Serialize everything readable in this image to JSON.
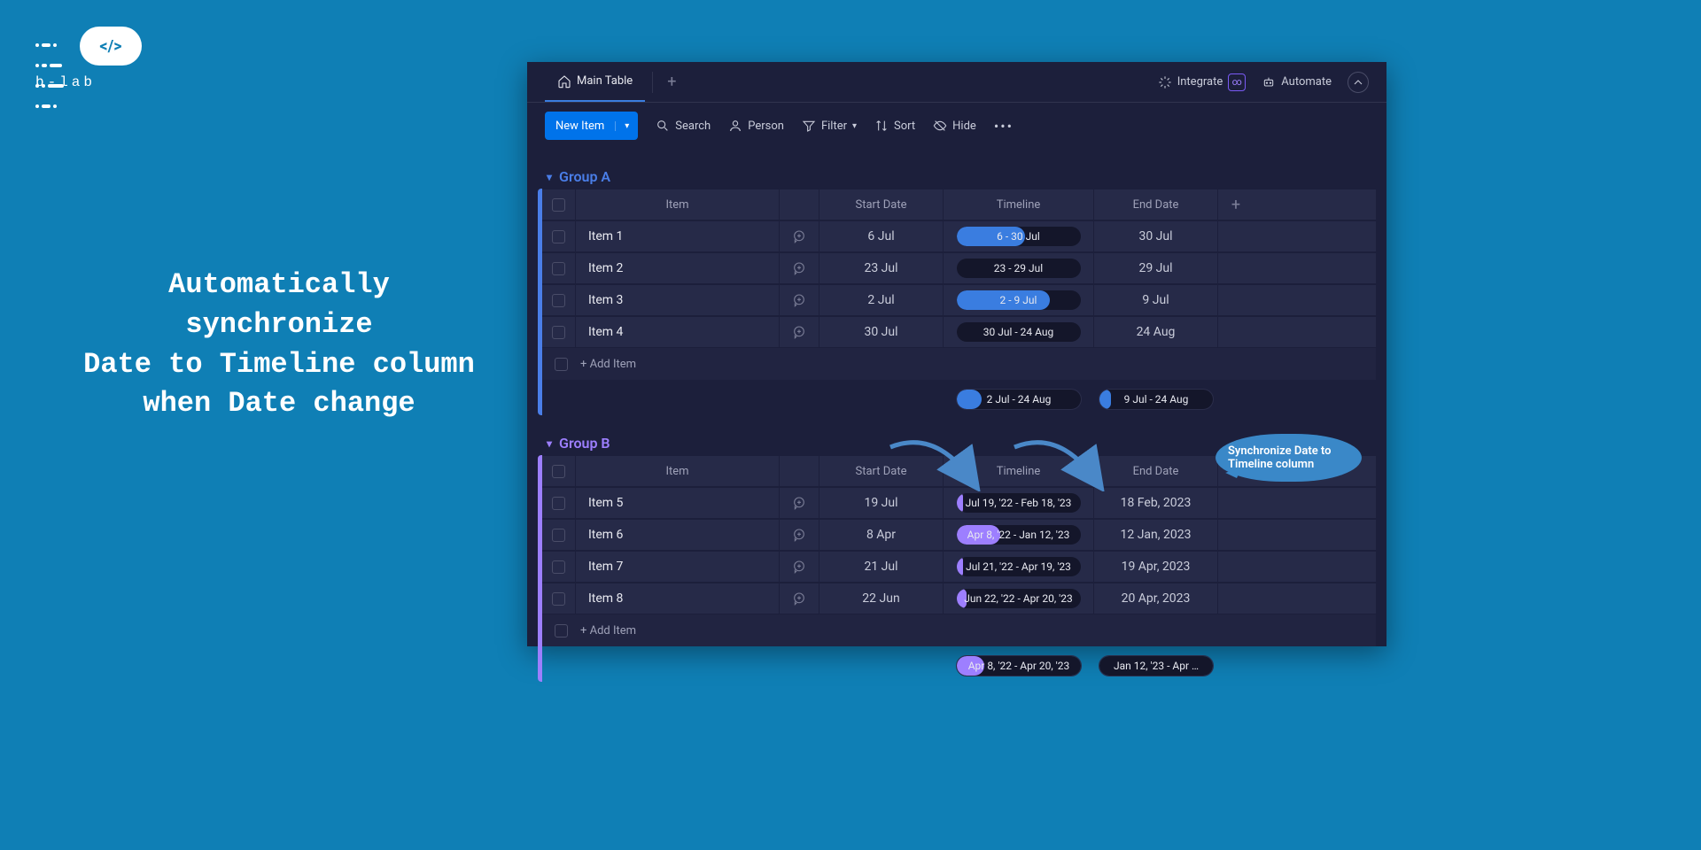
{
  "brand": {
    "name": "b-lab",
    "glyph": "</>"
  },
  "headline": "Automatically synchronize\nDate to Timeline column when Date change",
  "colors": {
    "page_bg": "#0f7fb5",
    "app_bg": "#1c1f3b",
    "row_bg": "#262a48",
    "primary_blue": "#0073ea",
    "group_a": "#4a7ee8",
    "group_b": "#9d7fff",
    "timeline_pill_bg": "#14162a",
    "callout_bg": "#3a88c8"
  },
  "topbar": {
    "tab_label": "Main Table",
    "integrate": "Integrate",
    "automate": "Automate"
  },
  "toolbar": {
    "new_item": "New Item",
    "search": "Search",
    "person": "Person",
    "filter": "Filter",
    "sort": "Sort",
    "hide": "Hide"
  },
  "columns": {
    "item": "Item",
    "start": "Start Date",
    "timeline": "Timeline",
    "end": "End Date"
  },
  "add_item": "+ Add Item",
  "callout": "Synchronize Date to Timeline column",
  "groups": [
    {
      "name": "Group A",
      "class": "group-a",
      "rows": [
        {
          "item": "Item 1",
          "start": "6 Jul",
          "timeline": "6 - 30 Jul",
          "end": "30 Jul",
          "fill_pct": 55,
          "fill_color": "#3a7de0"
        },
        {
          "item": "Item 2",
          "start": "23 Jul",
          "timeline": "23 - 29 Jul",
          "end": "29 Jul",
          "fill_pct": 0,
          "fill_color": "#3a7de0"
        },
        {
          "item": "Item 3",
          "start": "2 Jul",
          "timeline": "2 - 9 Jul",
          "end": "9 Jul",
          "fill_pct": 75,
          "fill_color": "#3a7de0"
        },
        {
          "item": "Item 4",
          "start": "30 Jul",
          "timeline": "30 Jul - 24 Aug",
          "end": "24 Aug",
          "fill_pct": 0,
          "fill_color": "#3a7de0"
        }
      ],
      "summary": {
        "timeline": "2 Jul - 24 Aug",
        "timeline_fill_pct": 20,
        "timeline_fill_color": "#3a7de0",
        "end": "9 Jul - 24 Aug",
        "end_fill_pct": 10,
        "end_fill_color": "#3a7de0"
      }
    },
    {
      "name": "Group B",
      "class": "group-b",
      "rows": [
        {
          "item": "Item 5",
          "start": "19 Jul",
          "timeline": "Jul 19, '22 - Feb 18, '23",
          "end": "18 Feb, 2023",
          "fill_pct": 5,
          "fill_color": "#9d7fff"
        },
        {
          "item": "Item 6",
          "start": "8 Apr",
          "timeline": "Apr 8, '22 - Jan 12, '23",
          "end": "12 Jan, 2023",
          "fill_pct": 35,
          "fill_color": "#9d7fff"
        },
        {
          "item": "Item 7",
          "start": "21 Jul",
          "timeline": "Jul 21, '22 - Apr 19, '23",
          "end": "19 Apr, 2023",
          "fill_pct": 5,
          "fill_color": "#9d7fff"
        },
        {
          "item": "Item 8",
          "start": "22 Jun",
          "timeline": "Jun 22, '22 - Apr 20, '23",
          "end": "20 Apr, 2023",
          "fill_pct": 8,
          "fill_color": "#9d7fff"
        }
      ],
      "summary": {
        "timeline": "Apr 8, '22 - Apr 20, '23",
        "timeline_fill_pct": 22,
        "timeline_fill_color": "#9d7fff",
        "end": "Jan 12, '23 - Apr …",
        "end_fill_pct": 0,
        "end_fill_color": "#9d7fff"
      }
    }
  ]
}
